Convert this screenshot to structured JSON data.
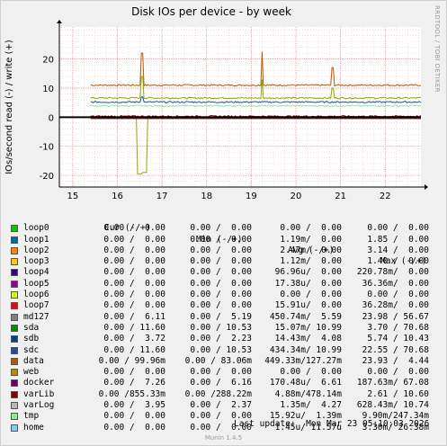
{
  "title": "Disk IOs per device - by week",
  "side_label": "RRDTOOL / TOBI OETIKER",
  "footer": {
    "last_update": "Last update:  Mon Mar 23 05:10:03 2026",
    "version": "Munin 1.4.5"
  },
  "chart_data": {
    "type": "line",
    "ylabel": "IOs/second read (-) / write (+)",
    "ylim": [
      -24,
      31
    ],
    "yticks": [
      -20,
      -10,
      0,
      10,
      20
    ],
    "xlim": [
      14.7,
      22.8
    ],
    "xticks": [
      15,
      16,
      17,
      18,
      19,
      20,
      21,
      22
    ],
    "grid": true,
    "series": [
      {
        "name": "data",
        "color": "#b35a00",
        "write_level": 11,
        "read_level": 0,
        "spikes": [
          [
            16.55,
            22
          ],
          [
            19.25,
            22.5
          ],
          [
            20.82,
            17
          ]
        ]
      },
      {
        "name": "docker",
        "color": "#8fa800",
        "write_level": 6.6,
        "read_level": -0.1,
        "spikes": [
          [
            16.55,
            14
          ],
          [
            19.25,
            13
          ],
          [
            20.82,
            10
          ]
        ],
        "read_spikes": [
          [
            16.5,
            -19.5
          ],
          [
            16.6,
            -19
          ]
        ]
      },
      {
        "name": "sdc",
        "color": "#2050a0",
        "write_level": 5.2,
        "read_level": 0,
        "spikes": [
          [
            16.55,
            7
          ]
        ]
      },
      {
        "name": "tmp",
        "color": "#90ee90",
        "write_level": 3.9,
        "read_level": -0.2,
        "spikes": []
      },
      {
        "name": "varLib",
        "color": "#7a0000",
        "write_level": 0.3,
        "read_level": -0.5,
        "spikes": []
      }
    ]
  },
  "legend": {
    "headers": [
      "Cur (-/+)",
      "Min (-/+)",
      "Avg (-/+)",
      "Max (-/+)"
    ],
    "rows": [
      {
        "name": "loop0",
        "color": "#00cc00",
        "cur": "0.00 /  0.00",
        "min": "0.00 /  0.00",
        "avg": "0.00 /  0.00",
        "max": "0.00 /  0.00"
      },
      {
        "name": "loop1",
        "color": "#0066b3",
        "cur": "0.00 /  0.00",
        "min": "0.00 /  0.00",
        "avg": "1.19m/  0.00",
        "max": "1.85 /  0.00"
      },
      {
        "name": "loop2",
        "color": "#ff8000",
        "cur": "0.00 /  0.00",
        "min": "0.00 /  0.00",
        "avg": "2.47m/  0.00",
        "max": "3.14 /  0.00"
      },
      {
        "name": "loop3",
        "color": "#ffcc00",
        "cur": "0.00 /  0.00",
        "min": "0.00 /  0.00",
        "avg": "1.12m/  0.00",
        "max": "1.40 /  0.00"
      },
      {
        "name": "loop4",
        "color": "#330099",
        "cur": "0.00 /  0.00",
        "min": "0.00 /  0.00",
        "avg": "96.96u/  0.00",
        "max": "220.78m/  0.00"
      },
      {
        "name": "loop5",
        "color": "#990099",
        "cur": "0.00 /  0.00",
        "min": "0.00 /  0.00",
        "avg": "17.38u/  0.00",
        "max": "36.36m/  0.00"
      },
      {
        "name": "loop6",
        "color": "#ccff00",
        "cur": "0.00 /  0.00",
        "min": "0.00 /  0.00",
        "avg": "0.00 /  0.00",
        "max": "0.00 /  0.00"
      },
      {
        "name": "loop7",
        "color": "#ff0000",
        "cur": "0.00 /  0.00",
        "min": "0.00 /  0.00",
        "avg": "15.91u/  0.00",
        "max": "36.28m/  0.00"
      },
      {
        "name": "md127",
        "color": "#808080",
        "cur": "0.00 /  6.11",
        "min": "0.00 /  5.19",
        "avg": "450.74m/  5.59",
        "max": "23.98 / 56.67"
      },
      {
        "name": "sda",
        "color": "#008f00",
        "cur": "0.00 / 11.60",
        "min": "0.00 / 10.53",
        "avg": "15.07m/ 10.99",
        "max": "3.70 / 70.68"
      },
      {
        "name": "sdb",
        "color": "#00487d",
        "cur": "0.00 /  3.72",
        "min": "0.00 /  2.23",
        "avg": "14.43m/  4.08",
        "max": "5.74 / 10.43"
      },
      {
        "name": "sdc",
        "color": "#2050a0",
        "cur": "0.00 / 11.60",
        "min": "0.00 / 10.53",
        "avg": "434.34m/ 10.99",
        "max": "22.55 / 70.68"
      },
      {
        "name": "data",
        "color": "#b35a00",
        "cur": "0.00 / 99.96m",
        "min": "0.00 / 83.06m",
        "avg": "449.33m/127.27m",
        "max": "23.93 /  4.44"
      },
      {
        "name": "web",
        "color": "#b38f00",
        "cur": "0.00 /  0.00",
        "min": "0.00 /  0.00",
        "avg": "0.00 /  0.00",
        "max": "0.00 /  0.00"
      },
      {
        "name": "docker",
        "color": "#6b006b",
        "cur": "0.00 /  7.26",
        "min": "0.00 /  6.16",
        "avg": "170.48u/  6.61",
        "max": "187.63m/ 67.08"
      },
      {
        "name": "varLib",
        "color": "#8f0000",
        "cur": "0.00 /855.33m",
        "min": "0.00 /288.22m",
        "avg": "4.88m/478.14m",
        "max": "2.61 / 10.60"
      },
      {
        "name": "varLog",
        "color": "#bababa",
        "cur": "0.00 /  3.95",
        "min": "0.00 /  2.37",
        "avg": "1.35m/  4.27",
        "max": "628.43m/ 10.74"
      },
      {
        "name": "tmp",
        "color": "#90ee90",
        "cur": "0.00 /  0.00",
        "min": "0.00 /  0.00",
        "avg": "15.92u/  1.39m",
        "max": "9.90m/247.34m"
      },
      {
        "name": "home",
        "color": "#87ceeb",
        "cur": "0.00 /  0.00",
        "min": "0.00 /  0.00",
        "avg": "1.45u/ 11.57u",
        "max": "3.30m/ 26.38m"
      }
    ]
  }
}
